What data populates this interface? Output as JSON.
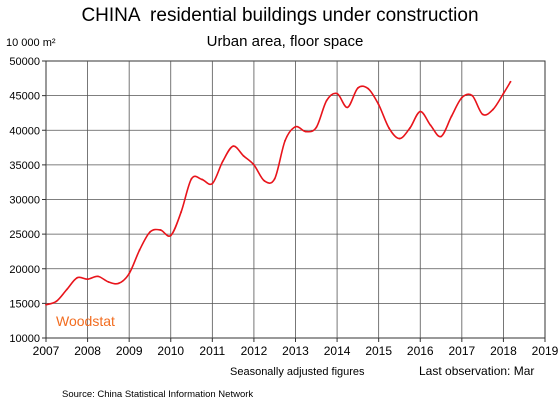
{
  "chart_data": {
    "type": "line",
    "title": "CHINA  residential buildings under construction",
    "subtitle": "Urban area, floor space",
    "ylabel": "10 000 m²",
    "xlabel": "",
    "xlim": [
      2007,
      2019
    ],
    "ylim": [
      10000,
      50000
    ],
    "x_ticks": [
      "2007",
      "2008",
      "2009",
      "2010",
      "2011",
      "2012",
      "2013",
      "2014",
      "2015",
      "2016",
      "2017",
      "2018",
      "2019"
    ],
    "y_ticks": [
      "10000",
      "15000",
      "20000",
      "25000",
      "30000",
      "35000",
      "40000",
      "45000",
      "50000"
    ],
    "grid": true,
    "series": [
      {
        "color": "#e8141b",
        "x": [
          2007.0,
          2007.25,
          2007.5,
          2007.75,
          2008.0,
          2008.25,
          2008.5,
          2008.75,
          2009.0,
          2009.25,
          2009.5,
          2009.75,
          2010.0,
          2010.25,
          2010.5,
          2010.75,
          2011.0,
          2011.25,
          2011.5,
          2011.75,
          2012.0,
          2012.25,
          2012.5,
          2012.75,
          2013.0,
          2013.25,
          2013.5,
          2013.75,
          2014.0,
          2014.25,
          2014.5,
          2014.75,
          2015.0,
          2015.25,
          2015.5,
          2015.75,
          2016.0,
          2016.25,
          2016.5,
          2016.75,
          2017.0,
          2017.25,
          2017.5,
          2017.75,
          2018.0,
          2018.17
        ],
        "values": [
          14800,
          15300,
          17000,
          18700,
          18500,
          18900,
          18100,
          17900,
          19300,
          22700,
          25300,
          25600,
          24800,
          28200,
          33000,
          32900,
          32300,
          35500,
          37700,
          36300,
          35000,
          32700,
          33000,
          38500,
          40500,
          39800,
          40400,
          44300,
          45300,
          43300,
          46100,
          46000,
          43700,
          40300,
          38800,
          40300,
          42700,
          40700,
          39100,
          42000,
          44700,
          45000,
          42300,
          43000,
          45300,
          47000
        ]
      }
    ],
    "watermark": "Woodstat",
    "annotations": [
      "Seasonally adjusted figures",
      "Last observation: Mar"
    ],
    "source": "Source: China Statistical Information Network"
  }
}
